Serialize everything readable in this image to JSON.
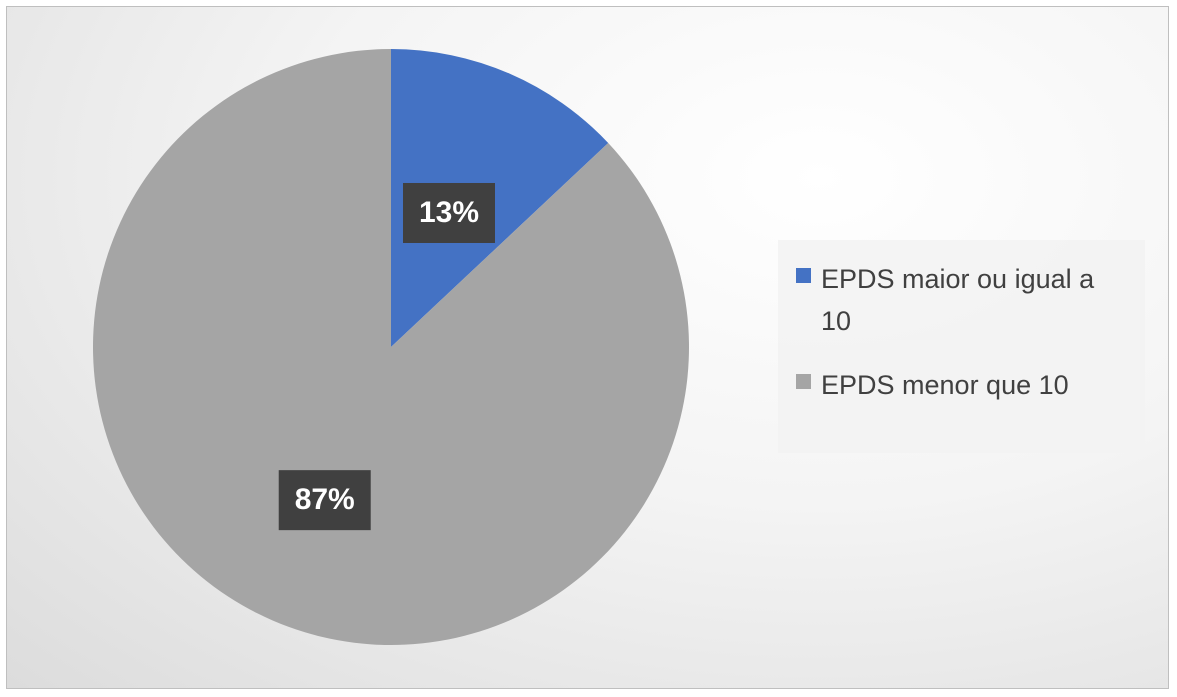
{
  "chart_data": {
    "type": "pie",
    "categories": [
      "EPDS maior ou igual a 10",
      "EPDS menor que 10"
    ],
    "values": [
      13,
      87
    ],
    "value_labels": [
      "13%",
      "87%"
    ],
    "colors": [
      "#4472c4",
      "#a5a5a5"
    ],
    "legend": "right"
  }
}
